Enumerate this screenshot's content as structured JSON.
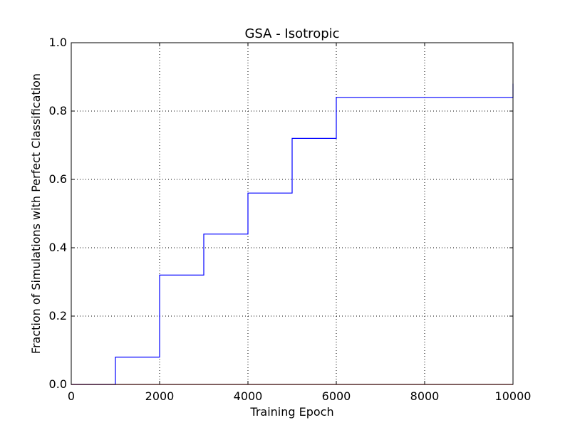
{
  "chart_data": {
    "type": "line",
    "title": "GSA - Isotropic",
    "xlabel": "Training Epoch",
    "ylabel": "Fraction of Simulations with Perfect Classification",
    "xlim": [
      0,
      10000
    ],
    "ylim": [
      0.0,
      1.0
    ],
    "x_ticks": [
      0,
      2000,
      4000,
      6000,
      8000,
      10000
    ],
    "x_tick_labels": [
      "0",
      "2000",
      "4000",
      "6000",
      "8000",
      "10000"
    ],
    "y_ticks": [
      0.0,
      0.2,
      0.4,
      0.6,
      0.8,
      1.0
    ],
    "y_tick_labels": [
      "0.0",
      "0.2",
      "0.4",
      "0.6",
      "0.8",
      "1.0"
    ],
    "grid": true,
    "grid_style": "dotted",
    "legend": "none",
    "series": [
      {
        "color": "#0000ff",
        "drawstyle": "steps-post",
        "x": [
          0,
          1000,
          2000,
          3000,
          4000,
          5000,
          6000,
          10000
        ],
        "y": [
          0.0,
          0.08,
          0.32,
          0.44,
          0.56,
          0.72,
          0.84,
          0.88
        ]
      },
      {
        "color": "#ff0000",
        "drawstyle": "steps-post",
        "x": [
          0,
          10000
        ],
        "y": [
          0.0,
          0.0
        ]
      }
    ]
  }
}
